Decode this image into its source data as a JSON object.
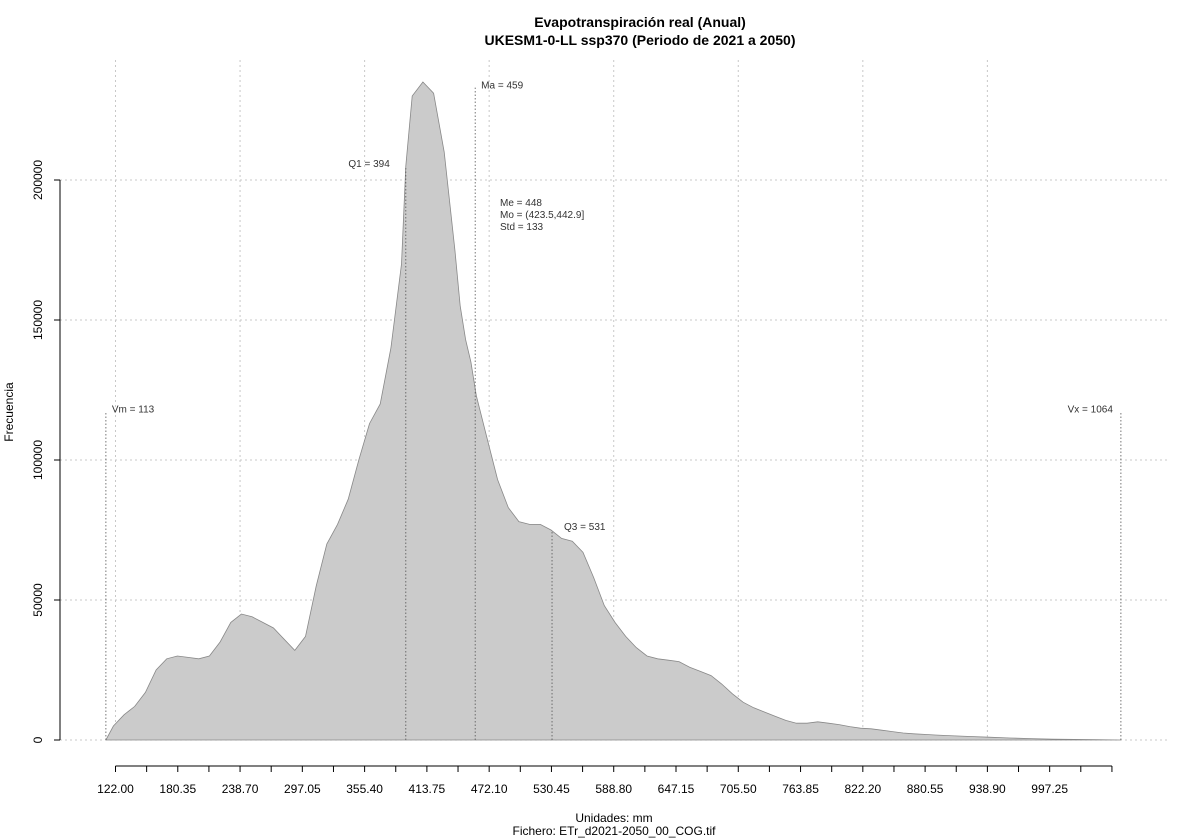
{
  "chart_data": {
    "type": "area",
    "title": "Evapotranspiración real (Anual)",
    "subtitle": "UKESM1-0-LL ssp370 (Periodo de 2021 a 2050)",
    "xlabel": "Unidades: mm",
    "ylabel": "Frecuencia",
    "footer": "Fichero: ETr_d2021-2050_00_COG.tif",
    "x_tick_labels": [
      "122.00",
      "180.35",
      "238.70",
      "297.05",
      "355.40",
      "413.75",
      "472.10",
      "530.45",
      "588.80",
      "647.15",
      "705.50",
      "763.85",
      "822.20",
      "880.55",
      "938.90",
      "997.25"
    ],
    "y_tick_labels": [
      "0",
      "50000",
      "100000",
      "150000",
      "200000"
    ],
    "xlim": [
      70,
      1110
    ],
    "ylim": [
      0,
      235000
    ],
    "grid": true,
    "fill_color": "#cbcbcb",
    "line_color": "#888888",
    "x": [
      113,
      120,
      130,
      140,
      150,
      160,
      170,
      180,
      190,
      200,
      210,
      220,
      230,
      240,
      250,
      260,
      270,
      280,
      290,
      300,
      310,
      320,
      330,
      340,
      350,
      360,
      370,
      380,
      390,
      394,
      400,
      410,
      420,
      430,
      440,
      445,
      450,
      455,
      460,
      470,
      480,
      490,
      500,
      510,
      520,
      530,
      540,
      550,
      560,
      570,
      580,
      590,
      600,
      610,
      620,
      630,
      640,
      650,
      660,
      670,
      680,
      690,
      700,
      710,
      720,
      730,
      740,
      750,
      760,
      770,
      780,
      790,
      800,
      810,
      820,
      830,
      840,
      850,
      860,
      870,
      880,
      890,
      900,
      920,
      940,
      960,
      980,
      1000,
      1020,
      1040,
      1064
    ],
    "y": [
      0,
      5000,
      9000,
      12000,
      17000,
      25000,
      29000,
      30000,
      29500,
      29000,
      30000,
      35000,
      42000,
      45000,
      44000,
      42000,
      40000,
      36000,
      32000,
      37000,
      55000,
      70000,
      77000,
      86000,
      100000,
      113000,
      120000,
      140000,
      170000,
      205000,
      230000,
      235000,
      231000,
      210000,
      175000,
      155000,
      143000,
      135000,
      123000,
      108000,
      93000,
      83000,
      78000,
      77000,
      77000,
      75000,
      72000,
      71000,
      67000,
      58000,
      48000,
      42000,
      37000,
      33000,
      30000,
      29000,
      28500,
      28000,
      26000,
      24500,
      23000,
      20000,
      16500,
      13500,
      11500,
      10000,
      8500,
      7000,
      6000,
      6000,
      6500,
      6000,
      5500,
      4800,
      4200,
      4000,
      3500,
      3000,
      2500,
      2200,
      2000,
      1800,
      1600,
      1300,
      1000,
      700,
      500,
      300,
      200,
      100,
      0
    ],
    "annotations": {
      "vm": {
        "label": "Vm = 113",
        "value": 113
      },
      "q1": {
        "label": "Q1 = 394",
        "value": 394
      },
      "ma": {
        "label": "Ma = 459",
        "value": 459
      },
      "q3": {
        "label": "Q3 = 531",
        "value": 531
      },
      "vx": {
        "label": "Vx = 1064",
        "value": 1064
      },
      "me": "Me = 448",
      "mo": "Mo = (423.5,442.9]",
      "std": "Std = 133"
    }
  }
}
